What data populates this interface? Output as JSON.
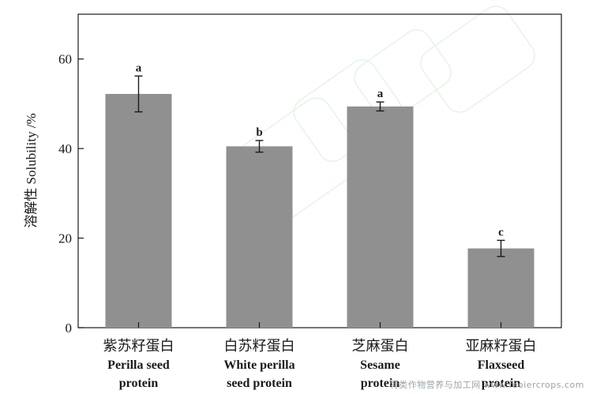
{
  "chart_data": {
    "type": "bar",
    "ylabel": "溶解性 Solubility /%",
    "ylim": [
      0,
      70
    ],
    "yticks": [
      0,
      20,
      40,
      60
    ],
    "categories": [
      [
        "紫苏籽蛋白",
        "Perilla seed",
        "protein"
      ],
      [
        "白苏籽蛋白",
        "White perilla",
        "seed protein"
      ],
      [
        "芝麻蛋白",
        "Sesame",
        "protein"
      ],
      [
        "亚麻籽蛋白",
        "Flaxseed",
        "protein"
      ]
    ],
    "values": [
      52.2,
      40.5,
      49.4,
      17.7
    ],
    "errors": [
      4.0,
      1.3,
      1.0,
      1.8
    ],
    "significance": [
      "a",
      "b",
      "a",
      "c"
    ],
    "bar_color": "#909090",
    "grid": false
  },
  "watermark": "特类作物营养与加工网 www.feoiercrops.com"
}
